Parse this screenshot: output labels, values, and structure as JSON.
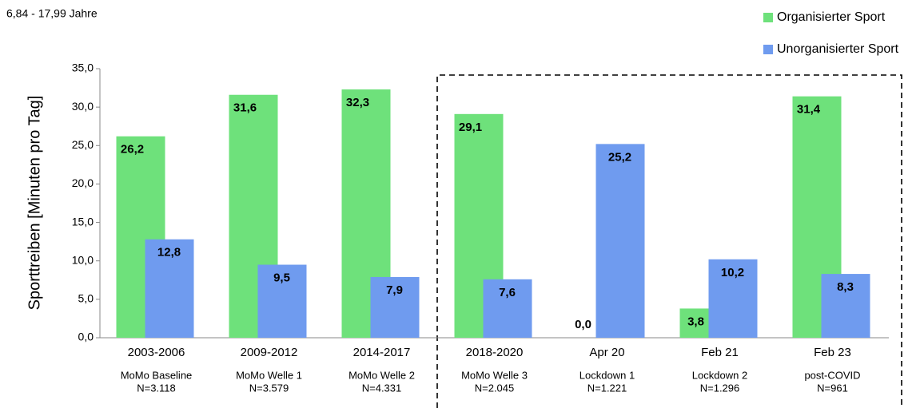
{
  "chart_data": {
    "type": "bar",
    "subtitle": "6,84 - 17,99 Jahre",
    "y_label": "Sporttreiben  [Minuten pro Tag]",
    "categories": [
      "2003-2006",
      "2009-2012",
      "2014-2017",
      "2018-2020",
      "Apr 20",
      "Feb 21",
      "Feb 23"
    ],
    "category_details": [
      [
        "MoMo Baseline",
        "N=3.118"
      ],
      [
        "MoMo Welle 1",
        "N=3.579"
      ],
      [
        "MoMo Welle 2",
        "N=4.331"
      ],
      [
        "MoMo Welle 3",
        "N=2.045"
      ],
      [
        "Lockdown 1",
        "N=1.221"
      ],
      [
        "Lockdown 2",
        "N=1.296"
      ],
      [
        "post-COVID",
        "N=961"
      ]
    ],
    "series": [
      {
        "name": "Organisierter Sport",
        "color": "#6ee17b",
        "values": [
          26.2,
          31.6,
          32.3,
          29.1,
          0,
          3.8,
          31.4
        ],
        "value_labels": [
          "26,2",
          "31,6",
          "32,3",
          "29,1",
          "0,0",
          "3,8",
          "31,4"
        ]
      },
      {
        "name": "Unorganisierter Sport",
        "color": "#6f9bef",
        "values": [
          12.8,
          9.5,
          7.9,
          7.6,
          25.2,
          10.2,
          8.3
        ],
        "value_labels": [
          "12,8",
          "9,5",
          "7,9",
          "7,6",
          "25,2",
          "10,2",
          "8,3"
        ]
      }
    ],
    "ylim": [
      0,
      35
    ],
    "yticks": [
      {
        "value": 0,
        "label": "0,0"
      },
      {
        "value": 5,
        "label": "5,0"
      },
      {
        "value": 10,
        "label": "10,0"
      },
      {
        "value": 15,
        "label": "15,0"
      },
      {
        "value": 20,
        "label": "20,0"
      },
      {
        "value": 25,
        "label": "25,0"
      },
      {
        "value": 30,
        "label": "30,0"
      },
      {
        "value": 35,
        "label": "35,0"
      }
    ],
    "legend": "upper right"
  }
}
